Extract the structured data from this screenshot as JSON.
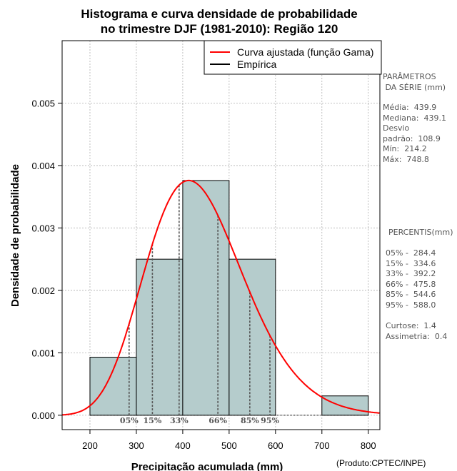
{
  "chart_data": {
    "type": "bar",
    "title_lines": [
      "Histograma e curva densidade de probabilidade",
      "no trimestre DJF (1981-2010): Região 120"
    ],
    "xlabel": "Precipitação acumulada (mm)",
    "ylabel": "Densidade de probabilidade",
    "credit": "(Produto:CPTEC/INPE)",
    "xlim": [
      140,
      825
    ],
    "ylim": [
      -0.00023,
      0.006
    ],
    "xticks": [
      200,
      300,
      400,
      500,
      600,
      700,
      800
    ],
    "xtick_labels": [
      "200",
      "300",
      "400",
      "500",
      "600",
      "700",
      "800"
    ],
    "yticks": [
      0,
      0.001,
      0.002,
      0.003,
      0.004,
      0.005
    ],
    "ytick_labels": [
      "0.000",
      "0.001",
      "0.002",
      "0.003",
      "0.004",
      "0.005"
    ],
    "grid": true,
    "bin_edges": [
      200,
      300,
      400,
      500,
      600,
      700,
      800
    ],
    "densities": [
      0.00093,
      0.0025,
      0.00376,
      0.0025,
      0,
      0.00031
    ],
    "gamma_fit": {
      "name": "Curva ajustada (função Gama)",
      "mean": 439.9,
      "sd": 108.9,
      "color": "#ff0000"
    },
    "legend": [
      {
        "label": "Curva ajustada (função Gama)",
        "color": "#ff0000"
      },
      {
        "label": "Empírica",
        "color": "#000000"
      }
    ],
    "legend_position": "top-right",
    "percentile_markers": [
      {
        "label": "05%",
        "value": 284.4
      },
      {
        "label": "15%",
        "value": 334.6
      },
      {
        "label": "33%",
        "value": 392.2
      },
      {
        "label": "66%",
        "value": 475.8
      },
      {
        "label": "85%",
        "value": 544.6
      },
      {
        "label": "95%",
        "value": 588.0
      }
    ],
    "colors": {
      "bar_fill": "#b5cccc",
      "curve": "#ff0000",
      "grid": "#b0b0b0",
      "marker": "#555555"
    }
  },
  "stats_panel": {
    "params_title": "PARÂMETROS\n DA SÉRIE (mm)",
    "params_text": "Média:  439.9\nMediana:  439.1\nDesvio\npadrão:  108.9\nMín:  214.2\nMáx:  748.8",
    "percentis_title": "PERCENTIS(mm)",
    "percentis_text": "05% -  284.4\n15% -  334.6\n33% -  392.2\n66% -  475.8\n85% -  544.6\n95% -  588.0",
    "shape_text": "Curtose:  1.4\nAssimetria:  0.4"
  }
}
